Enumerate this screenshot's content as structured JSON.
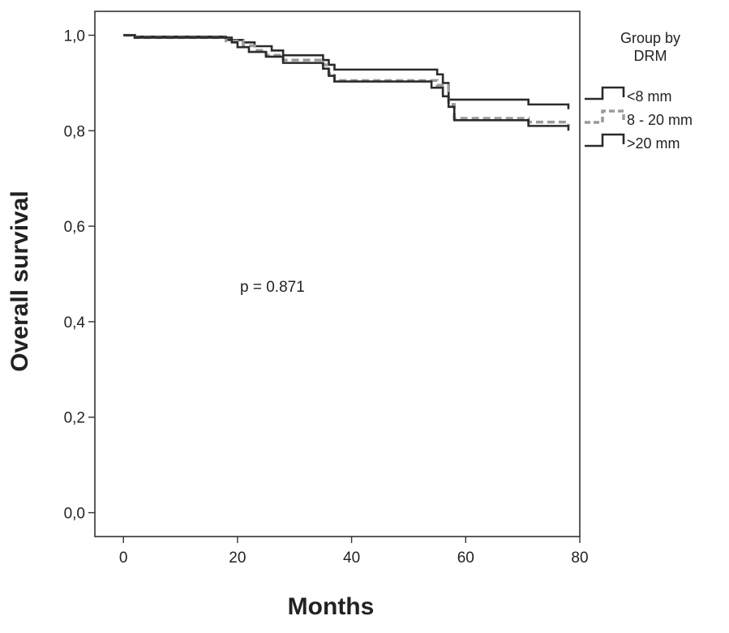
{
  "chart_data": {
    "type": "line",
    "xlabel": "Months",
    "ylabel": "Overall survival",
    "xlim": [
      -5,
      80
    ],
    "ylim": [
      -0.05,
      1.05
    ],
    "xticks": [
      0,
      20,
      40,
      60,
      80
    ],
    "xtick_labels": [
      "0",
      "20",
      "40",
      "60",
      "80"
    ],
    "yticks": [
      0.0,
      0.2,
      0.4,
      0.6,
      0.8,
      1.0
    ],
    "ytick_labels": [
      "0,0",
      "0,2",
      "0,4",
      "0,6",
      "0,8",
      "1,0"
    ],
    "grid": false,
    "step": true,
    "legend": {
      "title": "Group by DRM",
      "placement": "right"
    },
    "annotation": "p = 0.871",
    "series": [
      {
        "name": "<8 mm",
        "color": "#2b2b2b",
        "style": "solid",
        "x": [
          0,
          2,
          17,
          18,
          21,
          23,
          26,
          28,
          35,
          36,
          37,
          55,
          56,
          57,
          71,
          78
        ],
        "y": [
          1.0,
          0.997,
          0.997,
          0.99,
          0.985,
          0.977,
          0.968,
          0.958,
          0.948,
          0.938,
          0.928,
          0.918,
          0.9,
          0.865,
          0.855,
          0.845
        ]
      },
      {
        "name": "8 - 20 mm",
        "color": "#9a9a9a",
        "style": "dashed",
        "x": [
          0,
          2,
          17,
          18,
          21,
          23,
          25,
          28,
          35,
          36,
          37,
          55,
          57,
          58,
          71,
          78
        ],
        "y": [
          1.0,
          0.995,
          0.995,
          0.988,
          0.978,
          0.968,
          0.958,
          0.948,
          0.938,
          0.92,
          0.905,
          0.895,
          0.855,
          0.826,
          0.818,
          0.81
        ]
      },
      {
        "name": ">20 mm",
        "color": "#2b2b2b",
        "style": "solid",
        "x": [
          0,
          2,
          18,
          19,
          20,
          22,
          25,
          28,
          35,
          36,
          37,
          54,
          56,
          57,
          58,
          70,
          71,
          78
        ],
        "y": [
          1.0,
          0.995,
          0.995,
          0.985,
          0.975,
          0.965,
          0.955,
          0.942,
          0.93,
          0.915,
          0.903,
          0.89,
          0.872,
          0.85,
          0.822,
          0.822,
          0.81,
          0.8
        ]
      }
    ]
  }
}
